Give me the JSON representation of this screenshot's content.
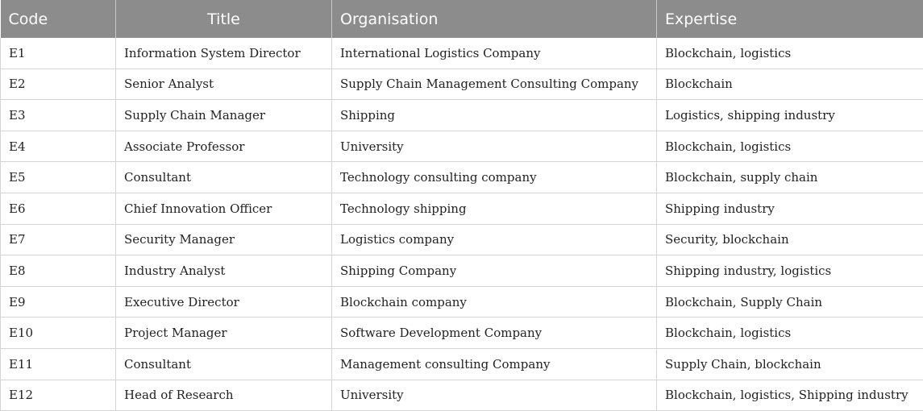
{
  "table": {
    "headers": {
      "code": "Code",
      "title": "Title",
      "organisation": "Organisation",
      "expertise": "Expertise"
    },
    "rows": [
      {
        "code": "E1",
        "title": "Information System Director",
        "organisation": "International Logistics Company",
        "expertise": "Blockchain, logistics"
      },
      {
        "code": "E2",
        "title": "Senior Analyst",
        "organisation": "Supply Chain Management Consulting Company",
        "expertise": "Blockchain"
      },
      {
        "code": "E3",
        "title": "Supply Chain Manager",
        "organisation": "Shipping",
        "expertise": "Logistics, shipping industry"
      },
      {
        "code": "E4",
        "title": "Associate Professor",
        "organisation": "University",
        "expertise": "Blockchain, logistics"
      },
      {
        "code": "E5",
        "title": "Consultant",
        "organisation": "Technology consulting company",
        "expertise": "Blockchain, supply chain"
      },
      {
        "code": "E6",
        "title": "Chief Innovation Officer",
        "organisation": "Technology shipping",
        "expertise": "Shipping industry"
      },
      {
        "code": "E7",
        "title": "Security Manager",
        "organisation": "Logistics company",
        "expertise": "Security, blockchain"
      },
      {
        "code": "E8",
        "title": "Industry Analyst",
        "organisation": "Shipping Company",
        "expertise": "Shipping industry, logistics"
      },
      {
        "code": "E9",
        "title": "Executive Director",
        "organisation": "Blockchain company",
        "expertise": "Blockchain, Supply Chain"
      },
      {
        "code": "E10",
        "title": "Project Manager",
        "organisation": "Software Development Company",
        "expertise": "Blockchain, logistics"
      },
      {
        "code": "E11",
        "title": "Consultant",
        "organisation": "Management consulting Company",
        "expertise": "Supply Chain, blockchain"
      },
      {
        "code": "E12",
        "title": "Head of Research",
        "organisation": "University",
        "expertise": "Blockchain, logistics, Shipping industry"
      }
    ]
  },
  "colors": {
    "header_bg": "#8c8c8c",
    "header_text": "#ffffff",
    "grid_line": "#d4d4d4"
  }
}
